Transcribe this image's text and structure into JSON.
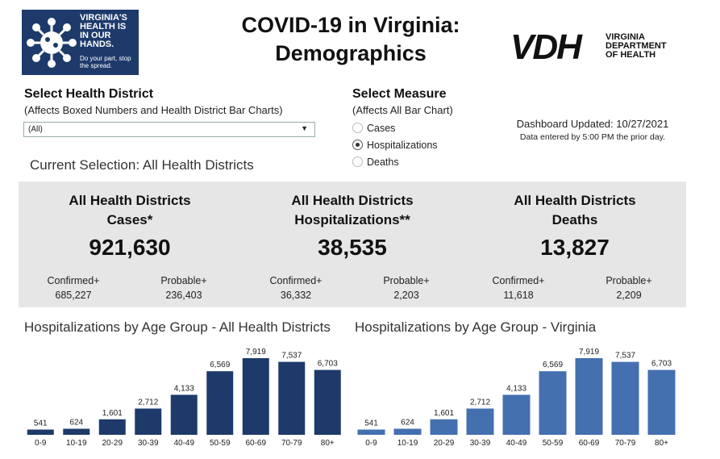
{
  "logo": {
    "line1": "VIRGINIA'S HEALTH IS IN OUR HANDS.",
    "line2": "Do your part, stop the spread."
  },
  "title": {
    "line1": "COVID-19 in Virginia:",
    "line2": "Demographics"
  },
  "vdh": {
    "mark": "VDH",
    "text1": "VIRGINIA",
    "text2": "DEPARTMENT",
    "text3": "OF HEALTH"
  },
  "district": {
    "title": "Select Health District",
    "subtitle": "(Affects Boxed Numbers and Health District Bar Charts)",
    "value": "(All)"
  },
  "measure": {
    "title": "Select Measure",
    "subtitle": "(Affects All Bar Chart)",
    "options": [
      "Cases",
      "Hospitalizations",
      "Deaths"
    ],
    "selected": "Hospitalizations"
  },
  "updated": {
    "line1": "Dashboard Updated: 10/27/2021",
    "line2": "Data entered by 5:00 PM the prior day."
  },
  "current_selection": "Current Selection: All Health Districts",
  "stats": [
    {
      "line1": "All Health Districts",
      "line2": "Cases*",
      "total": "921,630",
      "confirmed_label": "Confirmed+",
      "confirmed": "685,227",
      "probable_label": "Probable+",
      "probable": "236,403"
    },
    {
      "line1": "All Health Districts",
      "line2": "Hospitalizations**",
      "total": "38,535",
      "confirmed_label": "Confirmed+",
      "confirmed": "36,332",
      "probable_label": "Probable+",
      "probable": "2,203"
    },
    {
      "line1": "All Health Districts",
      "line2": "Deaths",
      "total": "13,827",
      "confirmed_label": "Confirmed+",
      "confirmed": "11,618",
      "probable_label": "Probable+",
      "probable": "2,209"
    }
  ],
  "chart_data": [
    {
      "type": "bar",
      "title": "Hospitalizations by Age Group - All Health Districts",
      "categories": [
        "0-9",
        "10-19",
        "20-29",
        "30-39",
        "40-49",
        "50-59",
        "60-69",
        "70-79",
        "80+"
      ],
      "values": [
        541,
        624,
        1601,
        2712,
        4133,
        6569,
        7919,
        7537,
        6703
      ],
      "data_labels": [
        "541",
        "624",
        "1,601",
        "2,712",
        "4,133",
        "6,569",
        "7,919",
        "7,537",
        "6,703"
      ],
      "color": "#1d3a6b",
      "ylim": [
        0,
        7919
      ],
      "grid": false
    },
    {
      "type": "bar",
      "title": "Hospitalizations by Age Group - Virginia",
      "categories": [
        "0-9",
        "10-19",
        "20-29",
        "30-39",
        "40-49",
        "50-59",
        "60-69",
        "70-79",
        "80+"
      ],
      "values": [
        541,
        624,
        1601,
        2712,
        4133,
        6569,
        7919,
        7537,
        6703
      ],
      "data_labels": [
        "541",
        "624",
        "1,601",
        "2,712",
        "4,133",
        "6,569",
        "7,919",
        "7,537",
        "6,703"
      ],
      "color": "#4470b0",
      "ylim": [
        0,
        7919
      ],
      "grid": false
    }
  ]
}
